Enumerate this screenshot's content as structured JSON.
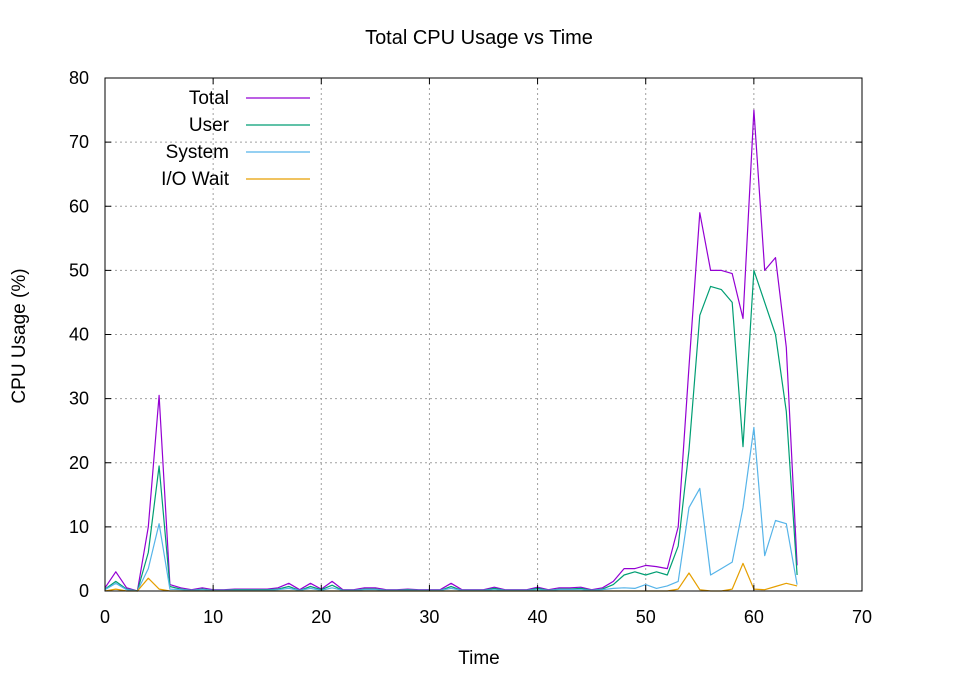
{
  "chart_data": {
    "type": "line",
    "title": "Total CPU Usage vs Time",
    "xlabel": "Time",
    "ylabel": "CPU Usage (%)",
    "xlim": [
      0,
      70
    ],
    "ylim": [
      0,
      80
    ],
    "xticks": [
      0,
      10,
      20,
      30,
      40,
      50,
      60,
      70
    ],
    "yticks": [
      0,
      10,
      20,
      30,
      40,
      50,
      60,
      70,
      80
    ],
    "grid": true,
    "legend_position": "top-left",
    "series": [
      {
        "name": "Total",
        "color": "#9400d3",
        "x": [
          0,
          1,
          2,
          3,
          4,
          5,
          6,
          7,
          8,
          9,
          10,
          11,
          12,
          13,
          14,
          15,
          16,
          17,
          18,
          19,
          20,
          21,
          22,
          23,
          24,
          25,
          26,
          27,
          28,
          29,
          30,
          31,
          32,
          33,
          34,
          35,
          36,
          37,
          38,
          39,
          40,
          41,
          42,
          43,
          44,
          45,
          46,
          47,
          48,
          49,
          50,
          51,
          52,
          53,
          54,
          55,
          56,
          57,
          58,
          59,
          60,
          61,
          62,
          63,
          64
        ],
        "values": [
          0.5,
          3,
          0.5,
          0,
          10,
          30.5,
          1,
          0.5,
          0.2,
          0.5,
          0.2,
          0.2,
          0.3,
          0.3,
          0.3,
          0.3,
          0.5,
          1.2,
          0.2,
          1.2,
          0.3,
          1.5,
          0.2,
          0.2,
          0.5,
          0.5,
          0.2,
          0.2,
          0.3,
          0.2,
          0.2,
          0.2,
          1.2,
          0.2,
          0.2,
          0.2,
          0.6,
          0.2,
          0.2,
          0.2,
          0.6,
          0.2,
          0.5,
          0.5,
          0.6,
          0.2,
          0.5,
          1.5,
          3.5,
          3.5,
          4,
          3.8,
          3.5,
          10,
          35,
          59,
          50,
          50,
          49.5,
          42.5,
          75,
          50,
          52,
          38,
          4
        ]
      },
      {
        "name": "User",
        "color": "#009e73",
        "x": [
          0,
          1,
          2,
          3,
          4,
          5,
          6,
          7,
          8,
          9,
          10,
          11,
          12,
          13,
          14,
          15,
          16,
          17,
          18,
          19,
          20,
          21,
          22,
          23,
          24,
          25,
          26,
          27,
          28,
          29,
          30,
          31,
          32,
          33,
          34,
          35,
          36,
          37,
          38,
          39,
          40,
          41,
          42,
          43,
          44,
          45,
          46,
          47,
          48,
          49,
          50,
          51,
          52,
          53,
          54,
          55,
          56,
          57,
          58,
          59,
          60,
          61,
          62,
          63,
          64
        ],
        "values": [
          0.3,
          1.5,
          0.3,
          0,
          6,
          19.5,
          0.7,
          0.3,
          0.1,
          0.3,
          0.1,
          0.1,
          0.2,
          0.2,
          0.2,
          0.2,
          0.3,
          0.7,
          0.1,
          0.7,
          0.2,
          0.9,
          0.1,
          0.1,
          0.3,
          0.3,
          0.1,
          0.1,
          0.2,
          0.1,
          0.1,
          0.1,
          0.7,
          0.1,
          0.1,
          0.1,
          0.4,
          0.1,
          0.1,
          0.1,
          0.4,
          0.1,
          0.3,
          0.3,
          0.4,
          0.1,
          0.3,
          1,
          2.5,
          3,
          2.5,
          3,
          2.5,
          7,
          22,
          43,
          47.5,
          47,
          45,
          22.5,
          50,
          45,
          40,
          28,
          2.5
        ]
      },
      {
        "name": "System",
        "color": "#56b4e9",
        "x": [
          0,
          1,
          2,
          3,
          4,
          5,
          6,
          7,
          8,
          9,
          10,
          11,
          12,
          13,
          14,
          15,
          16,
          17,
          18,
          19,
          20,
          21,
          22,
          23,
          24,
          25,
          26,
          27,
          28,
          29,
          30,
          31,
          32,
          33,
          34,
          35,
          36,
          37,
          38,
          39,
          40,
          41,
          42,
          43,
          44,
          45,
          46,
          47,
          48,
          49,
          50,
          51,
          52,
          53,
          54,
          55,
          56,
          57,
          58,
          59,
          60,
          61,
          62,
          63,
          64
        ],
        "values": [
          0.2,
          1.2,
          0.2,
          0,
          3.5,
          10.5,
          0.3,
          0.2,
          0.1,
          0.2,
          0.1,
          0.1,
          0.1,
          0.1,
          0.1,
          0.1,
          0.2,
          0.4,
          0.1,
          0.4,
          0.1,
          0.5,
          0.1,
          0.1,
          0.2,
          0.2,
          0.1,
          0.1,
          0.1,
          0.1,
          0.1,
          0.1,
          0.4,
          0.1,
          0.1,
          0.1,
          0.2,
          0.1,
          0.1,
          0.1,
          0.2,
          0.1,
          0.2,
          0.2,
          0.2,
          0.1,
          0.2,
          0.4,
          0.5,
          0.4,
          1,
          0.4,
          0.8,
          1.5,
          13,
          16,
          2.5,
          3.5,
          4.5,
          13,
          25.5,
          5.5,
          11,
          10.5,
          1
        ]
      },
      {
        "name": "I/O Wait",
        "color": "#e69f00",
        "x": [
          0,
          1,
          2,
          3,
          4,
          5,
          6,
          7,
          8,
          9,
          10,
          11,
          12,
          13,
          14,
          15,
          16,
          17,
          18,
          19,
          20,
          21,
          22,
          23,
          24,
          25,
          26,
          27,
          28,
          29,
          30,
          31,
          32,
          33,
          34,
          35,
          36,
          37,
          38,
          39,
          40,
          41,
          42,
          43,
          44,
          45,
          46,
          47,
          48,
          49,
          50,
          51,
          52,
          53,
          54,
          55,
          56,
          57,
          58,
          59,
          60,
          61,
          62,
          63,
          64
        ],
        "values": [
          0,
          0.3,
          0,
          0,
          2,
          0.3,
          0,
          0,
          0,
          0,
          0,
          0,
          0,
          0,
          0,
          0,
          0,
          0,
          0,
          0,
          0,
          0,
          0,
          0,
          0,
          0,
          0,
          0,
          0,
          0,
          0,
          0,
          0,
          0,
          0,
          0,
          0,
          0,
          0,
          0,
          0,
          0,
          0,
          0,
          0,
          0,
          0,
          0,
          0,
          0,
          0,
          0,
          0,
          0.3,
          2.8,
          0.2,
          0,
          0,
          0.3,
          4.3,
          0.3,
          0.2,
          0.7,
          1.2,
          0.8
        ]
      }
    ]
  }
}
